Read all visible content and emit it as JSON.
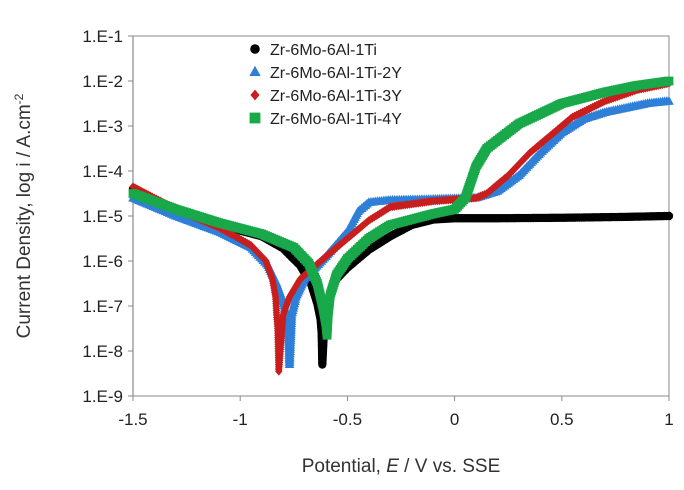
{
  "chart_data": {
    "type": "scatter",
    "xlabel_parts": [
      "Potential, ",
      "E",
      " / V vs. SSE"
    ],
    "ylabel_parts": [
      "Current Density, log i / A.cm",
      "-2"
    ],
    "xlim": [
      -1.5,
      1
    ],
    "ylim_log10": [
      -9,
      -1
    ],
    "x_ticks": [
      {
        "value": -1.5,
        "label": "-1.5"
      },
      {
        "value": -1.0,
        "label": "-1"
      },
      {
        "value": -0.5,
        "label": "-0.5"
      },
      {
        "value": 0.0,
        "label": "0"
      },
      {
        "value": 0.5,
        "label": "0.5"
      },
      {
        "value": 1.0,
        "label": "1"
      }
    ],
    "y_ticks": [
      {
        "value": -1,
        "label": "1.E-1"
      },
      {
        "value": -2,
        "label": "1.E-2"
      },
      {
        "value": -3,
        "label": "1.E-3"
      },
      {
        "value": -4,
        "label": "1.E-4"
      },
      {
        "value": -5,
        "label": "1.E-5"
      },
      {
        "value": -6,
        "label": "1.E-6"
      },
      {
        "value": -7,
        "label": "1.E-7"
      },
      {
        "value": -8,
        "label": "1.E-8"
      },
      {
        "value": -9,
        "label": "1.E-9"
      }
    ],
    "legend_position": "top-left",
    "series": [
      {
        "name": "Zr-6Mo-6Al-1Ti",
        "marker": "circle",
        "color": "#000000",
        "points": [
          [
            -1.5,
            -4.4
          ],
          [
            -1.3,
            -4.85
          ],
          [
            -1.1,
            -5.2
          ],
          [
            -0.9,
            -5.45
          ],
          [
            -0.8,
            -5.72
          ],
          [
            -0.72,
            -6.1
          ],
          [
            -0.67,
            -6.5
          ],
          [
            -0.64,
            -6.95
          ],
          [
            -0.625,
            -7.3
          ],
          [
            -0.62,
            -7.6
          ],
          [
            -0.617,
            -8.3
          ],
          [
            -0.61,
            -7.6
          ],
          [
            -0.6,
            -7.1
          ],
          [
            -0.58,
            -6.7
          ],
          [
            -0.55,
            -6.4
          ],
          [
            -0.5,
            -6.15
          ],
          [
            -0.4,
            -5.75
          ],
          [
            -0.3,
            -5.45
          ],
          [
            -0.2,
            -5.2
          ],
          [
            -0.1,
            -5.08
          ],
          [
            0.0,
            -5.05
          ],
          [
            0.2,
            -5.05
          ],
          [
            0.5,
            -5.04
          ],
          [
            0.8,
            -5.02
          ],
          [
            1.0,
            -5.0
          ]
        ]
      },
      {
        "name": "Zr-6Mo-6Al-1Ti-2Y",
        "marker": "triangle",
        "color": "#2e7fd8",
        "points": [
          [
            -1.5,
            -4.6
          ],
          [
            -1.3,
            -5.0
          ],
          [
            -1.1,
            -5.35
          ],
          [
            -0.95,
            -5.7
          ],
          [
            -0.87,
            -6.1
          ],
          [
            -0.83,
            -6.5
          ],
          [
            -0.8,
            -6.9
          ],
          [
            -0.785,
            -7.2
          ],
          [
            -0.775,
            -7.45
          ],
          [
            -0.77,
            -8.3
          ],
          [
            -0.76,
            -7.2
          ],
          [
            -0.74,
            -6.8
          ],
          [
            -0.7,
            -6.4
          ],
          [
            -0.6,
            -5.9
          ],
          [
            -0.5,
            -5.35
          ],
          [
            -0.45,
            -4.9
          ],
          [
            -0.4,
            -4.7
          ],
          [
            -0.3,
            -4.65
          ],
          [
            -0.1,
            -4.63
          ],
          [
            0.1,
            -4.6
          ],
          [
            0.2,
            -4.45
          ],
          [
            0.3,
            -4.1
          ],
          [
            0.4,
            -3.6
          ],
          [
            0.5,
            -3.15
          ],
          [
            0.6,
            -2.85
          ],
          [
            0.7,
            -2.7
          ],
          [
            0.8,
            -2.6
          ],
          [
            0.9,
            -2.5
          ],
          [
            1.0,
            -2.45
          ]
        ]
      },
      {
        "name": "Zr-6Mo-6Al-1Ti-3Y",
        "marker": "diamond",
        "color": "#c81e1e",
        "points": [
          [
            -1.5,
            -4.35
          ],
          [
            -1.3,
            -4.85
          ],
          [
            -1.1,
            -5.25
          ],
          [
            -0.95,
            -5.65
          ],
          [
            -0.88,
            -6.0
          ],
          [
            -0.85,
            -6.4
          ],
          [
            -0.835,
            -6.8
          ],
          [
            -0.83,
            -7.2
          ],
          [
            -0.825,
            -7.5
          ],
          [
            -0.82,
            -8.45
          ],
          [
            -0.8,
            -7.2
          ],
          [
            -0.77,
            -6.8
          ],
          [
            -0.72,
            -6.4
          ],
          [
            -0.6,
            -5.9
          ],
          [
            -0.5,
            -5.5
          ],
          [
            -0.4,
            -5.1
          ],
          [
            -0.3,
            -4.8
          ],
          [
            -0.1,
            -4.67
          ],
          [
            0.1,
            -4.6
          ],
          [
            0.15,
            -4.5
          ],
          [
            0.25,
            -4.1
          ],
          [
            0.35,
            -3.6
          ],
          [
            0.45,
            -3.2
          ],
          [
            0.55,
            -2.8
          ],
          [
            0.7,
            -2.45
          ],
          [
            0.85,
            -2.2
          ],
          [
            1.0,
            -2.05
          ]
        ]
      },
      {
        "name": "Zr-6Mo-6Al-1Ti-4Y",
        "marker": "square",
        "color": "#19a84a",
        "points": [
          [
            -1.5,
            -4.5
          ],
          [
            -1.3,
            -4.85
          ],
          [
            -1.1,
            -5.15
          ],
          [
            -0.9,
            -5.4
          ],
          [
            -0.75,
            -5.7
          ],
          [
            -0.68,
            -6.05
          ],
          [
            -0.64,
            -6.5
          ],
          [
            -0.615,
            -7.0
          ],
          [
            -0.6,
            -7.4
          ],
          [
            -0.595,
            -7.65
          ],
          [
            -0.59,
            -7.2
          ],
          [
            -0.58,
            -6.75
          ],
          [
            -0.55,
            -6.3
          ],
          [
            -0.5,
            -5.95
          ],
          [
            -0.4,
            -5.5
          ],
          [
            -0.3,
            -5.2
          ],
          [
            -0.1,
            -4.95
          ],
          [
            0.0,
            -4.85
          ],
          [
            0.05,
            -4.6
          ],
          [
            0.1,
            -3.9
          ],
          [
            0.15,
            -3.5
          ],
          [
            0.3,
            -2.95
          ],
          [
            0.5,
            -2.5
          ],
          [
            0.7,
            -2.25
          ],
          [
            0.85,
            -2.1
          ],
          [
            1.0,
            -2.0
          ]
        ]
      }
    ]
  }
}
